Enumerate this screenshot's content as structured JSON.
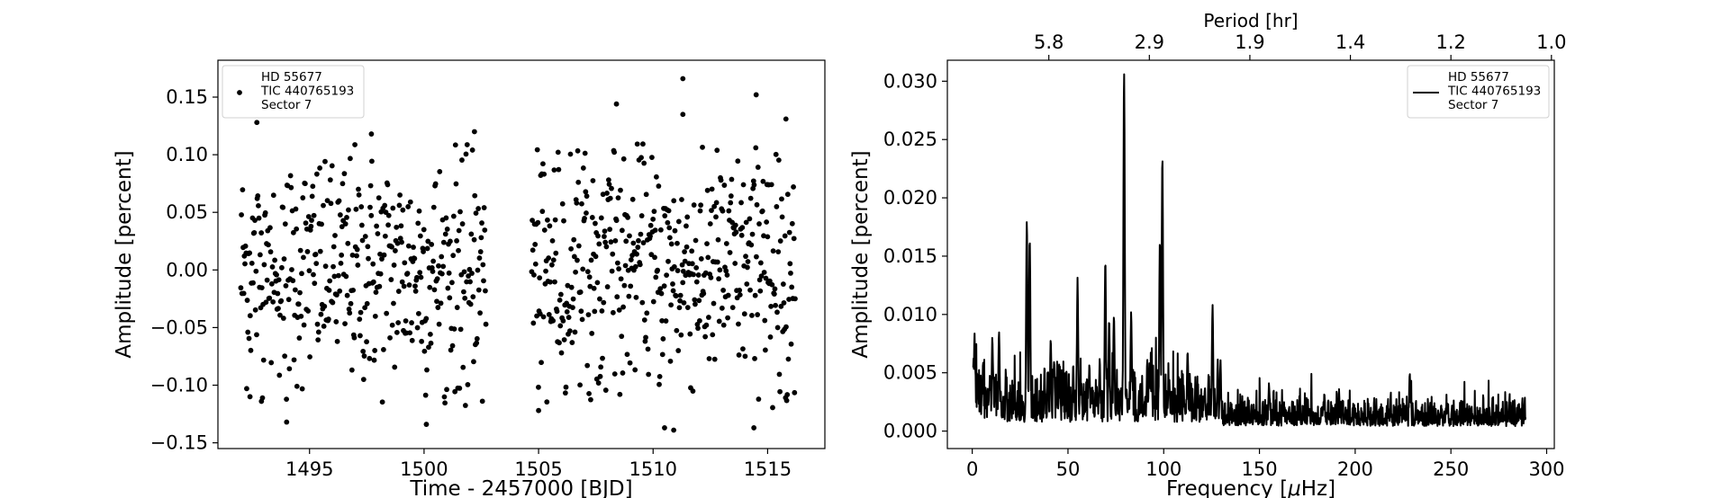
{
  "chart_data": [
    {
      "type": "scatter",
      "xlabel": "Time - 2457000 [BJD]",
      "ylabel": "Amplitude [percent]",
      "xlim": [
        1491.0,
        1517.5
      ],
      "ylim": [
        -0.155,
        0.182
      ],
      "xticks": [
        1495,
        1500,
        1505,
        1510,
        1515
      ],
      "xtick_labels": [
        "1495",
        "1500",
        "1505",
        "1510",
        "1515"
      ],
      "yticks": [
        -0.15,
        -0.1,
        -0.05,
        0.0,
        0.05,
        0.1,
        0.15
      ],
      "ytick_labels": [
        "−0.15",
        "−0.10",
        "−0.05",
        "0.00",
        "0.05",
        "0.10",
        "0.15"
      ],
      "legend": {
        "position": "top-left",
        "lines": [
          "HD 55677",
          "TIC 440765193",
          "Sector 7"
        ]
      },
      "segments": [
        {
          "x_start": 1492.0,
          "x_end": 1502.7,
          "count": 420
        },
        {
          "x_start": 1504.7,
          "x_end": 1516.2,
          "count": 470
        }
      ],
      "noise_std": 0.05,
      "highlight_points": [
        {
          "x": 1492.7,
          "y": 0.128
        },
        {
          "x": 1494.0,
          "y": -0.132
        },
        {
          "x": 1500.1,
          "y": -0.134
        },
        {
          "x": 1508.4,
          "y": 0.144
        },
        {
          "x": 1511.3,
          "y": 0.166
        },
        {
          "x": 1511.3,
          "y": 0.135
        },
        {
          "x": 1510.5,
          "y": -0.137
        },
        {
          "x": 1510.9,
          "y": -0.139
        },
        {
          "x": 1514.5,
          "y": 0.152
        },
        {
          "x": 1514.4,
          "y": -0.137
        },
        {
          "x": 1515.8,
          "y": 0.131
        },
        {
          "x": 1497.7,
          "y": 0.118
        },
        {
          "x": 1502.2,
          "y": 0.12
        },
        {
          "x": 1505.0,
          "y": -0.122
        },
        {
          "x": 1492.4,
          "y": -0.11
        },
        {
          "x": 1492.9,
          "y": -0.114
        }
      ]
    },
    {
      "type": "line",
      "xlabel": "Frequency [$\\mu$Hz]",
      "ylabel": "Amplitude [percent]",
      "top_xlabel": "Period [hr]",
      "xlim": [
        -13,
        304
      ],
      "ylim": [
        -0.0015,
        0.0318
      ],
      "xticks": [
        0,
        50,
        100,
        150,
        200,
        250,
        300
      ],
      "xtick_labels": [
        "0",
        "50",
        "100",
        "150",
        "200",
        "250",
        "300"
      ],
      "yticks": [
        0.0,
        0.005,
        0.01,
        0.015,
        0.02,
        0.025,
        0.03
      ],
      "ytick_labels": [
        "0.000",
        "0.005",
        "0.010",
        "0.015",
        "0.020",
        "0.025",
        "0.030"
      ],
      "top_xticks_freq": [
        40,
        92.5,
        145,
        197.5,
        250,
        302.5
      ],
      "top_xtick_labels": [
        "5.8",
        "2.9",
        "1.9",
        "1.4",
        "1.2",
        "1.0"
      ],
      "legend": {
        "position": "top-right",
        "lines": [
          "HD 55677",
          "TIC 440765193",
          "Sector 7"
        ]
      },
      "freq_range": [
        0.5,
        289
      ],
      "peaks": [
        {
          "x": 1.2,
          "y": 0.0078
        },
        {
          "x": 10.5,
          "y": 0.0075
        },
        {
          "x": 14.0,
          "y": 0.0082
        },
        {
          "x": 28.5,
          "y": 0.0178
        },
        {
          "x": 30.0,
          "y": 0.0163
        },
        {
          "x": 41.0,
          "y": 0.0073
        },
        {
          "x": 55.0,
          "y": 0.0125
        },
        {
          "x": 69.5,
          "y": 0.0142
        },
        {
          "x": 71.5,
          "y": 0.009
        },
        {
          "x": 74.0,
          "y": 0.0097
        },
        {
          "x": 79.3,
          "y": 0.0305
        },
        {
          "x": 83.0,
          "y": 0.0098
        },
        {
          "x": 98.0,
          "y": 0.016
        },
        {
          "x": 99.3,
          "y": 0.0233
        },
        {
          "x": 112.5,
          "y": 0.0064
        },
        {
          "x": 125.5,
          "y": 0.0102
        },
        {
          "x": 155.0,
          "y": 0.0037
        },
        {
          "x": 228.5,
          "y": 0.0048
        }
      ]
    }
  ]
}
